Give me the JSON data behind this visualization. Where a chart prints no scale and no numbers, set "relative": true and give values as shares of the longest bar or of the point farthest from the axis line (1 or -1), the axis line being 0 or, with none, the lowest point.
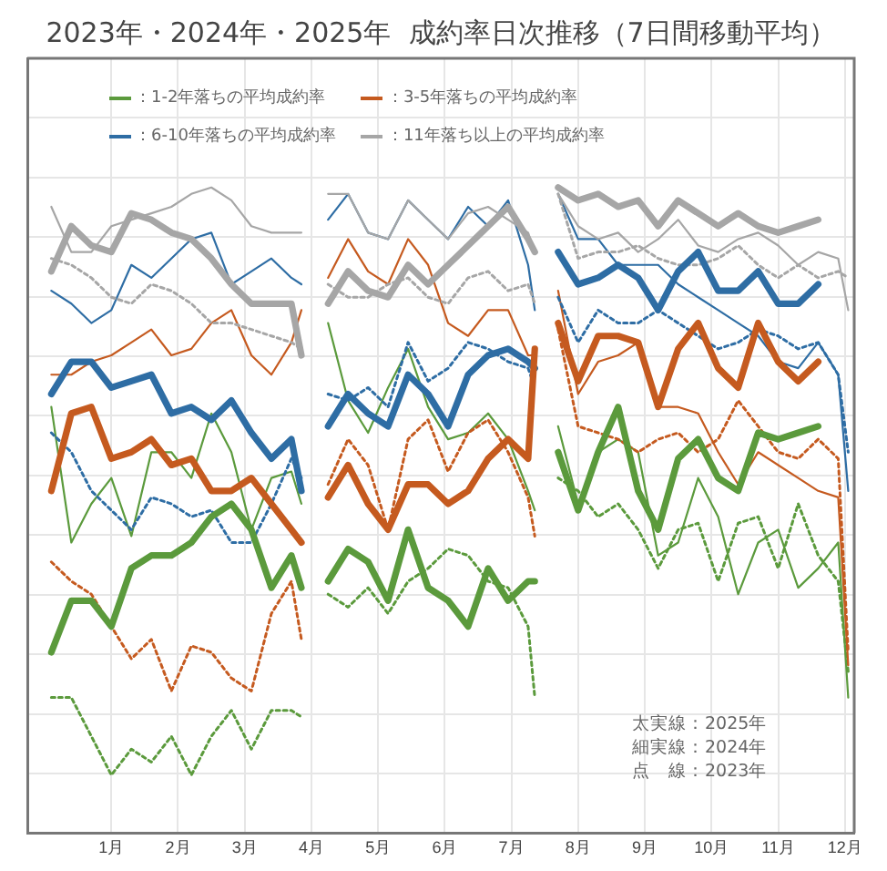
{
  "chart_data": {
    "type": "line",
    "title": "2023年・2024年・2025年  成約率日次推移（7日間移動平均）",
    "relative": true,
    "grid": true,
    "legend": "top left",
    "marker": "none",
    "x": [
      0.1,
      0.4,
      0.7,
      1.0,
      1.3,
      1.6,
      1.9,
      2.2,
      2.5,
      2.8,
      3.1,
      3.4,
      3.7,
      3.85,
      4.0,
      4.25,
      4.55,
      4.85,
      5.15,
      5.45,
      5.75,
      6.05,
      6.35,
      6.65,
      6.95,
      7.25,
      7.35,
      7.55,
      7.7,
      8.0,
      8.3,
      8.6,
      8.9,
      9.2,
      9.5,
      9.8,
      10.1,
      10.4,
      10.7,
      11.0,
      11.3,
      11.6,
      11.9,
      12.05
    ],
    "xlim": [
      -0.26,
      12.14
    ],
    "xticks": [
      {
        "value": 1,
        "label": "1月"
      },
      {
        "value": 2,
        "label": "2月"
      },
      {
        "value": 3,
        "label": "3月"
      },
      {
        "value": 4,
        "label": "4月"
      },
      {
        "value": 5,
        "label": "5月"
      },
      {
        "value": 6,
        "label": "6月"
      },
      {
        "value": 7,
        "label": "7月"
      },
      {
        "value": 8,
        "label": "8月"
      },
      {
        "value": 9,
        "label": "9月"
      },
      {
        "value": 10,
        "label": "10月"
      },
      {
        "value": 11,
        "label": "11月"
      },
      {
        "value": 12,
        "label": "12月"
      }
    ],
    "annotations": [
      "太実線：2025年",
      "細実線：2024年",
      "点　線：2023年"
    ],
    "series": [
      {
        "color": "#a6a6a6",
        "line_style": "solid",
        "values": [
          0.97,
          0.9,
          0.9,
          0.94,
          0.95,
          0.96,
          0.97,
          0.99,
          1.0,
          0.98,
          0.94,
          0.93,
          0.93,
          0.93,
          null,
          0.99,
          0.99,
          0.93,
          0.92,
          0.98,
          0.95,
          0.92,
          0.96,
          0.97,
          0.95,
          0.93,
          0.9,
          null,
          0.99,
          0.94,
          0.92,
          0.93,
          0.9,
          0.92,
          0.95,
          0.91,
          0.9,
          0.92,
          0.93,
          0.91,
          0.88,
          0.9,
          0.89,
          0.81
        ]
      },
      {
        "color": "#a6a6a6",
        "line_style": "dotted",
        "values": [
          0.89,
          0.88,
          0.86,
          0.83,
          0.82,
          0.85,
          0.84,
          0.82,
          0.79,
          0.79,
          0.78,
          0.77,
          0.76,
          0.75,
          null,
          0.85,
          0.83,
          0.83,
          0.85,
          0.86,
          0.83,
          0.82,
          0.86,
          0.87,
          0.84,
          0.85,
          0.82,
          null,
          0.99,
          0.89,
          0.9,
          0.9,
          0.91,
          0.89,
          0.88,
          0.88,
          0.89,
          0.91,
          0.88,
          0.86,
          0.88,
          0.86,
          0.87,
          0.86
        ]
      },
      {
        "color": "#2e6da4",
        "line_style": "solid",
        "values": [
          0.84,
          0.82,
          0.79,
          0.81,
          0.88,
          0.86,
          0.89,
          0.92,
          0.93,
          0.85,
          0.87,
          0.89,
          0.86,
          0.85,
          null,
          0.95,
          0.99,
          0.93,
          0.92,
          0.98,
          0.95,
          0.92,
          0.97,
          0.94,
          0.98,
          0.88,
          0.81,
          null,
          0.99,
          0.92,
          0.92,
          0.88,
          0.88,
          0.88,
          0.85,
          0.83,
          0.81,
          0.79,
          0.77,
          0.73,
          0.72,
          0.76,
          0.71,
          0.53
        ]
      },
      {
        "color": "#2e6da4",
        "line_style": "dotted",
        "values": [
          0.62,
          0.59,
          0.53,
          0.5,
          0.47,
          0.52,
          0.51,
          0.49,
          0.5,
          0.45,
          0.45,
          0.51,
          0.58,
          0.55,
          null,
          0.68,
          0.67,
          0.69,
          0.66,
          0.76,
          0.7,
          0.72,
          0.76,
          0.75,
          0.73,
          0.72,
          0.69,
          null,
          0.83,
          0.76,
          0.81,
          0.79,
          0.79,
          0.81,
          0.79,
          0.77,
          0.75,
          0.76,
          0.78,
          0.77,
          0.75,
          0.76,
          0.71,
          0.59
        ]
      },
      {
        "color": "#c55a1f",
        "line_style": "solid",
        "values": [
          0.71,
          0.71,
          0.73,
          0.74,
          0.76,
          0.78,
          0.74,
          0.75,
          0.79,
          0.81,
          0.74,
          0.71,
          0.76,
          0.81,
          null,
          0.86,
          0.92,
          0.87,
          0.85,
          0.92,
          0.88,
          0.79,
          0.77,
          0.81,
          0.81,
          0.74,
          0.74,
          null,
          0.84,
          0.68,
          0.73,
          0.74,
          0.76,
          0.66,
          0.66,
          0.65,
          0.59,
          0.54,
          0.59,
          0.57,
          0.55,
          0.53,
          0.52,
          0.26
        ]
      },
      {
        "color": "#c55a1f",
        "line_style": "dotted",
        "values": [
          0.42,
          0.39,
          0.37,
          0.32,
          0.27,
          0.3,
          0.22,
          0.29,
          0.28,
          0.24,
          0.22,
          0.34,
          0.39,
          0.3,
          null,
          0.54,
          0.61,
          0.57,
          0.47,
          0.61,
          0.64,
          0.56,
          0.62,
          0.64,
          0.59,
          0.52,
          0.46,
          null,
          0.78,
          0.63,
          0.62,
          0.61,
          0.59,
          0.61,
          0.62,
          0.59,
          0.61,
          0.67,
          0.63,
          0.59,
          0.58,
          0.61,
          0.58,
          0.28
        ]
      },
      {
        "color": "#5b9a3c",
        "line_style": "solid",
        "values": [
          0.66,
          0.45,
          0.51,
          0.55,
          0.46,
          0.59,
          0.59,
          0.55,
          0.65,
          0.59,
          0.47,
          0.55,
          0.56,
          0.51,
          null,
          0.79,
          0.67,
          0.62,
          0.69,
          0.75,
          0.66,
          0.61,
          0.62,
          0.65,
          0.61,
          0.53,
          0.5,
          null,
          0.63,
          0.51,
          0.59,
          0.61,
          0.59,
          0.43,
          0.45,
          0.55,
          0.49,
          0.37,
          0.45,
          0.47,
          0.38,
          0.41,
          0.45,
          0.21
        ]
      },
      {
        "color": "#5b9a3c",
        "line_style": "dotted",
        "values": [
          0.21,
          0.21,
          0.15,
          0.09,
          0.13,
          0.11,
          0.15,
          0.09,
          0.15,
          0.19,
          0.13,
          0.19,
          0.19,
          0.18,
          null,
          0.37,
          0.35,
          0.38,
          0.34,
          0.39,
          0.41,
          0.44,
          0.43,
          0.39,
          0.38,
          0.32,
          0.21,
          null,
          0.55,
          0.53,
          0.49,
          0.51,
          0.47,
          0.41,
          0.47,
          0.48,
          0.39,
          0.48,
          0.49,
          0.41,
          0.51,
          0.43,
          0.39,
          0.25
        ]
      },
      {
        "name": "：1-2年落ちの平均成約率",
        "color": "#5b9a3c",
        "line_style": "solid",
        "values": [
          0.28,
          0.36,
          0.36,
          0.32,
          0.41,
          0.43,
          0.43,
          0.45,
          0.49,
          0.51,
          0.47,
          0.38,
          0.43,
          0.38,
          null,
          0.39,
          0.44,
          0.42,
          0.36,
          0.47,
          0.38,
          0.36,
          0.32,
          0.41,
          0.36,
          0.39,
          0.39,
          null,
          0.59,
          0.5,
          0.59,
          0.66,
          0.53,
          0.47,
          0.58,
          0.61,
          0.55,
          0.53,
          0.62,
          0.61,
          0.62,
          0.63,
          null,
          null
        ]
      },
      {
        "name": "：3-5年落ちの平均成約率",
        "color": "#c55a1f",
        "line_style": "solid",
        "values": [
          0.53,
          0.65,
          0.66,
          0.58,
          0.59,
          0.61,
          0.57,
          0.58,
          0.53,
          0.53,
          0.55,
          0.51,
          0.47,
          0.45,
          null,
          0.52,
          0.57,
          0.51,
          0.47,
          0.54,
          0.54,
          0.51,
          0.53,
          0.58,
          0.61,
          0.58,
          0.75,
          null,
          0.79,
          0.7,
          0.77,
          0.77,
          0.76,
          0.66,
          0.75,
          0.79,
          0.72,
          0.69,
          0.79,
          0.73,
          0.7,
          0.73,
          null,
          null
        ]
      },
      {
        "name": "：6-10年落ちの平均成約率",
        "color": "#2e6da4",
        "line_style": "solid",
        "values": [
          0.68,
          0.73,
          0.73,
          0.69,
          0.7,
          0.71,
          0.65,
          0.66,
          0.64,
          0.67,
          0.62,
          0.58,
          0.61,
          0.53,
          null,
          0.63,
          0.68,
          0.65,
          0.63,
          0.71,
          0.68,
          0.63,
          0.71,
          0.74,
          0.75,
          0.73,
          0.72,
          null,
          0.9,
          0.85,
          0.86,
          0.88,
          0.86,
          0.81,
          0.87,
          0.9,
          0.84,
          0.84,
          0.87,
          0.82,
          0.82,
          0.85,
          null,
          null
        ]
      },
      {
        "name": "：11年落ち以上の平均成約率",
        "color": "#a6a6a6",
        "line_style": "solid",
        "values": [
          0.87,
          0.94,
          0.91,
          0.9,
          0.96,
          0.95,
          0.93,
          0.92,
          0.89,
          0.85,
          0.82,
          0.82,
          0.82,
          0.74,
          null,
          0.82,
          0.87,
          0.84,
          0.83,
          0.88,
          0.85,
          0.88,
          0.91,
          0.94,
          0.97,
          0.92,
          0.9,
          null,
          1.0,
          0.98,
          0.99,
          0.97,
          0.98,
          0.94,
          0.98,
          0.96,
          0.94,
          0.96,
          0.94,
          0.93,
          0.94,
          0.95,
          null,
          null
        ]
      }
    ]
  }
}
